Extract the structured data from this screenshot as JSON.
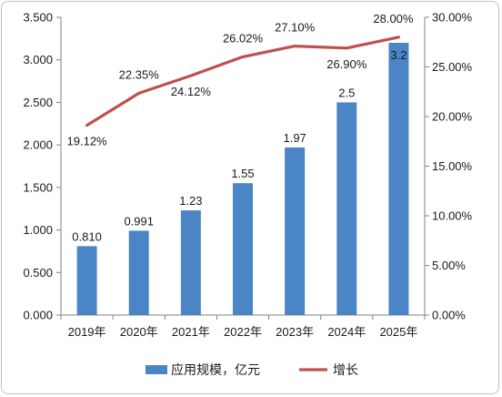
{
  "chart_data": {
    "type": "bar",
    "categories": [
      "2019年",
      "2020年",
      "2021年",
      "2022年",
      "2023年",
      "2024年",
      "2025年"
    ],
    "series": [
      {
        "name": "应用规模，亿元",
        "kind": "bar",
        "axis": "left",
        "values": [
          0.81,
          0.991,
          1.23,
          1.55,
          1.97,
          2.5,
          3.2
        ],
        "labels": [
          "0.810",
          "0.991",
          "1.23",
          "1.55",
          "1.97",
          "2.5",
          "3.2"
        ],
        "color": "#4a86c5"
      },
      {
        "name": "增长",
        "kind": "line",
        "axis": "right",
        "values": [
          0.1912,
          0.2235,
          0.2412,
          0.2602,
          0.271,
          0.269,
          0.28
        ],
        "labels": [
          "19.12%",
          "22.35%",
          "24.12%",
          "26.02%",
          "27.10%",
          "26.90%",
          "28.00%"
        ],
        "color": "#c0504d"
      }
    ],
    "y_left": {
      "ylim": [
        0,
        3.5
      ],
      "ticks": [
        "0.000",
        "0.500",
        "1.000",
        "1.500",
        "2.000",
        "2.500",
        "3.000",
        "3.500"
      ]
    },
    "y_right": {
      "ylim": [
        0,
        0.3
      ],
      "ticks": [
        "0.00%",
        "5.00%",
        "10.00%",
        "15.00%",
        "20.00%",
        "25.00%",
        "30.00%"
      ]
    },
    "legend_position": "bottom",
    "grid": false
  }
}
